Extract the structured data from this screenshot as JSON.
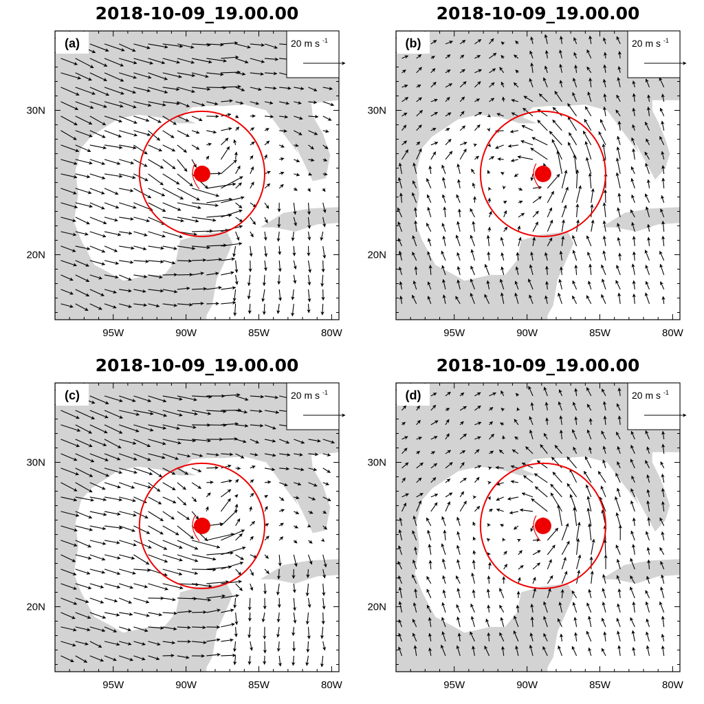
{
  "panels": [
    {
      "id": "a",
      "label": "(a)",
      "title": "2018-10-09_19.00.00",
      "wind_regime": "strong-westerly"
    },
    {
      "id": "b",
      "label": "(b)",
      "title": "2018-10-09_19.00.00",
      "wind_regime": "weak-southerly"
    },
    {
      "id": "c",
      "label": "(c)",
      "title": "2018-10-09_19.00.00",
      "wind_regime": "strong-westerly"
    },
    {
      "id": "d",
      "label": "(d)",
      "title": "2018-10-09_19.00.00",
      "wind_regime": "weak-southerly"
    }
  ],
  "reference_vector": {
    "text": "20 m s",
    "exponent": "-1",
    "speed_ms": 20
  },
  "axes": {
    "x_ticks": [
      {
        "lon": -95,
        "label": "95W"
      },
      {
        "lon": -90,
        "label": "90W"
      },
      {
        "lon": -85,
        "label": "85W"
      },
      {
        "lon": -80,
        "label": "80W"
      }
    ],
    "y_ticks": [
      {
        "lat": 30,
        "label": "30N"
      },
      {
        "lat": 20,
        "label": "20N"
      }
    ],
    "lon_range": [
      -99,
      -79.5
    ],
    "lat_range": [
      15.5,
      35.5
    ]
  },
  "storm": {
    "center_lon": -88.9,
    "center_lat": 25.6,
    "radius_deg": 4.3
  },
  "colors": {
    "land": "#d3d3d3",
    "ocean": "#ffffff",
    "storm": "#ee0000",
    "vector": "#000000"
  }
}
